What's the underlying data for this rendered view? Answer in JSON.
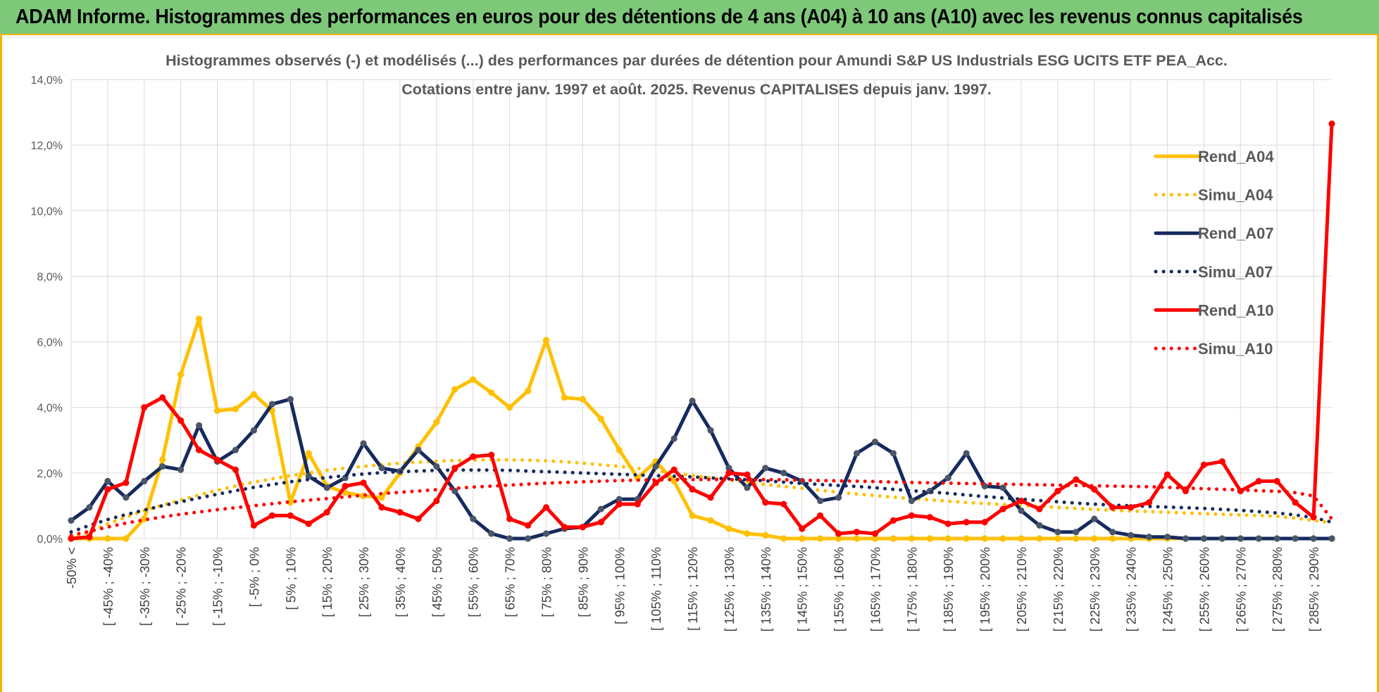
{
  "banner": {
    "title": "ADAM Informe. Histogrammes des performances en euros pour des détentions de 4 ans (A04) à 10 ans (A10) avec les revenus connus capitalisés"
  },
  "colors": {
    "banner_bg": "#7ec87a",
    "frame_accent": "#f0b400",
    "A04": "#ffc000",
    "A07": "#172a5e",
    "A10": "#ff0000"
  },
  "chart_data": {
    "type": "line",
    "title": "Histogrammes observés (-) et modélisés (...) des performances par durées de détention pour Amundi S&P US Industrials ESG UCITS ETF PEA_Acc.",
    "subtitle": "Cotations entre janv. 1997 et août. 2025. Revenus CAPITALISES depuis janv. 1997.",
    "xlabel": "",
    "ylabel": "",
    "ylim": [
      0,
      14
    ],
    "yticks": [
      0,
      2,
      4,
      6,
      8,
      10,
      12,
      14
    ],
    "ytick_labels": [
      "0,0%",
      "2,0%",
      "4,0%",
      "6,0%",
      "8,0%",
      "10,0%",
      "12,0%",
      "14,0%"
    ],
    "grid": true,
    "legend_position": "right",
    "x_tick_labels": [
      "-50% <",
      "[ -45% ; -40%",
      "[ -35% ; -30%",
      "[ -25% ; -20%",
      "[ -15% ; -10%",
      "[ -5% ; 0%",
      "[ 5% ; 10%",
      "[ 15% ; 20%",
      "[ 25% ; 30%",
      "[ 35% ; 40%",
      "[ 45% ; 50%",
      "[ 55% ; 60%",
      "[ 65% ; 70%",
      "[ 75% ; 80%",
      "[ 85% ; 90%",
      "[ 95% ; 100%",
      "[ 105% ; 110%",
      "[ 115% ; 120%",
      "[ 125% ; 130%",
      "[ 135% ; 140%",
      "[ 145% ; 150%",
      "[ 155% ; 160%",
      "[ 165% ; 170%",
      "[ 175% ; 180%",
      "[ 185% ; 190%",
      "[ 195% ; 200%",
      "[ 205% ; 210%",
      "[ 215% ; 220%",
      "[ 225% ; 230%",
      "[ 235% ; 240%",
      "[ 245% ; 250%",
      "[ 255% ; 260%",
      "[ 265% ; 270%",
      "[ 275% ; 280%",
      "[ 285% ; 290%"
    ],
    "n_points": 70,
    "series": [
      {
        "name": "Rend_A04",
        "style": "solid",
        "markers": true,
        "color": "#ffc000",
        "values": [
          0.0,
          0.0,
          0.0,
          0.0,
          0.6,
          2.4,
          5.0,
          6.7,
          3.9,
          3.95,
          4.4,
          3.9,
          1.1,
          2.6,
          1.6,
          1.4,
          1.3,
          1.25,
          2.0,
          2.8,
          3.55,
          4.55,
          4.85,
          4.45,
          4.0,
          4.5,
          6.05,
          4.3,
          4.25,
          3.65,
          2.7,
          1.85,
          2.35,
          1.75,
          0.7,
          0.55,
          0.3,
          0.15,
          0.1,
          0.0,
          0.0,
          0.0,
          0.0,
          0.0,
          0.0,
          0.0,
          0.0,
          0.0,
          0.0,
          0.0,
          0.0,
          0.0,
          0.0,
          0.0,
          0.0,
          0.0,
          0.0,
          0.0,
          0.0,
          0.0,
          0.0,
          0.0,
          0.0,
          0.0,
          0.0,
          0.0,
          0.0,
          0.0,
          0.0,
          0.0
        ]
      },
      {
        "name": "Simu_A04",
        "style": "dotted",
        "markers": false,
        "color": "#ffc000",
        "values": [
          0.0,
          0.2,
          0.45,
          0.65,
          0.85,
          1.02,
          1.18,
          1.33,
          1.47,
          1.6,
          1.72,
          1.82,
          1.92,
          2.0,
          2.08,
          2.15,
          2.2,
          2.25,
          2.3,
          2.33,
          2.36,
          2.38,
          2.39,
          2.4,
          2.4,
          2.39,
          2.37,
          2.34,
          2.3,
          2.25,
          2.2,
          2.14,
          2.07,
          2.0,
          1.93,
          1.85,
          1.78,
          1.72,
          1.65,
          1.59,
          1.53,
          1.47,
          1.41,
          1.36,
          1.31,
          1.26,
          1.22,
          1.18,
          1.14,
          1.1,
          1.07,
          1.04,
          1.01,
          0.98,
          0.95,
          0.92,
          0.89,
          0.86,
          0.84,
          0.82,
          0.8,
          0.78,
          0.76,
          0.74,
          0.72,
          0.7,
          0.68,
          0.62,
          0.55,
          0.48
        ]
      },
      {
        "name": "Rend_A07",
        "style": "solid",
        "markers": true,
        "color": "#172a5e",
        "values": [
          0.55,
          0.95,
          1.75,
          1.25,
          1.75,
          2.2,
          2.1,
          3.45,
          2.35,
          2.7,
          3.3,
          4.1,
          4.25,
          1.9,
          1.55,
          1.85,
          2.9,
          2.15,
          2.05,
          2.7,
          2.2,
          1.45,
          0.6,
          0.15,
          0.0,
          0.0,
          0.15,
          0.3,
          0.35,
          0.9,
          1.2,
          1.2,
          2.2,
          3.05,
          4.2,
          3.3,
          2.15,
          1.55,
          2.15,
          2.0,
          1.75,
          1.15,
          1.25,
          2.6,
          2.95,
          2.6,
          1.15,
          1.45,
          1.85,
          2.6,
          1.6,
          1.55,
          0.85,
          0.4,
          0.2,
          0.2,
          0.6,
          0.2,
          0.1,
          0.05,
          0.05,
          0.0,
          0.0,
          0.0,
          0.0,
          0.0,
          0.0,
          0.0,
          0.0,
          0.0
        ]
      },
      {
        "name": "Simu_A07",
        "style": "dotted",
        "markers": false,
        "color": "#172a5e",
        "values": [
          0.2,
          0.4,
          0.58,
          0.73,
          0.87,
          1.0,
          1.12,
          1.24,
          1.35,
          1.46,
          1.56,
          1.65,
          1.73,
          1.8,
          1.86,
          1.92,
          1.97,
          2.01,
          2.04,
          2.06,
          2.08,
          2.09,
          2.09,
          2.09,
          2.08,
          2.06,
          2.04,
          2.02,
          2.0,
          1.98,
          1.96,
          1.94,
          1.92,
          1.9,
          1.88,
          1.85,
          1.82,
          1.79,
          1.76,
          1.72,
          1.68,
          1.65,
          1.62,
          1.59,
          1.55,
          1.5,
          1.46,
          1.42,
          1.38,
          1.33,
          1.28,
          1.24,
          1.2,
          1.16,
          1.12,
          1.08,
          1.05,
          1.02,
          1.0,
          0.98,
          0.96,
          0.94,
          0.92,
          0.89,
          0.86,
          0.82,
          0.78,
          0.72,
          0.64,
          0.5
        ]
      },
      {
        "name": "Rend_A10",
        "style": "solid",
        "markers": true,
        "color": "#ff0000",
        "values": [
          0.0,
          0.05,
          1.5,
          1.7,
          4.0,
          4.3,
          3.6,
          2.7,
          2.4,
          2.1,
          0.4,
          0.7,
          0.7,
          0.45,
          0.8,
          1.6,
          1.7,
          0.95,
          0.8,
          0.6,
          1.15,
          2.15,
          2.5,
          2.55,
          0.6,
          0.4,
          0.95,
          0.35,
          0.35,
          0.5,
          1.05,
          1.05,
          1.7,
          2.1,
          1.5,
          1.25,
          2.0,
          1.95,
          1.1,
          1.05,
          0.3,
          0.7,
          0.15,
          0.2,
          0.15,
          0.55,
          0.7,
          0.65,
          0.45,
          0.5,
          0.5,
          0.9,
          1.15,
          0.9,
          1.45,
          1.8,
          1.5,
          0.95,
          0.95,
          1.1,
          1.95,
          1.45,
          2.25,
          2.35,
          1.45,
          1.75,
          1.75,
          1.1,
          0.65,
          12.65
        ]
      },
      {
        "name": "Simu_A10",
        "style": "dotted",
        "markers": false,
        "color": "#ff0000",
        "values": [
          0.1,
          0.22,
          0.35,
          0.47,
          0.57,
          0.66,
          0.74,
          0.81,
          0.88,
          0.94,
          1.0,
          1.06,
          1.12,
          1.17,
          1.22,
          1.27,
          1.32,
          1.37,
          1.41,
          1.45,
          1.49,
          1.53,
          1.57,
          1.6,
          1.63,
          1.66,
          1.69,
          1.71,
          1.73,
          1.75,
          1.77,
          1.78,
          1.79,
          1.8,
          1.8,
          1.8,
          1.8,
          1.8,
          1.8,
          1.79,
          1.78,
          1.77,
          1.76,
          1.75,
          1.74,
          1.72,
          1.71,
          1.7,
          1.69,
          1.68,
          1.67,
          1.66,
          1.65,
          1.64,
          1.63,
          1.62,
          1.61,
          1.6,
          1.59,
          1.58,
          1.56,
          1.54,
          1.52,
          1.5,
          1.48,
          1.46,
          1.44,
          1.4,
          1.3,
          0.6
        ]
      }
    ]
  }
}
